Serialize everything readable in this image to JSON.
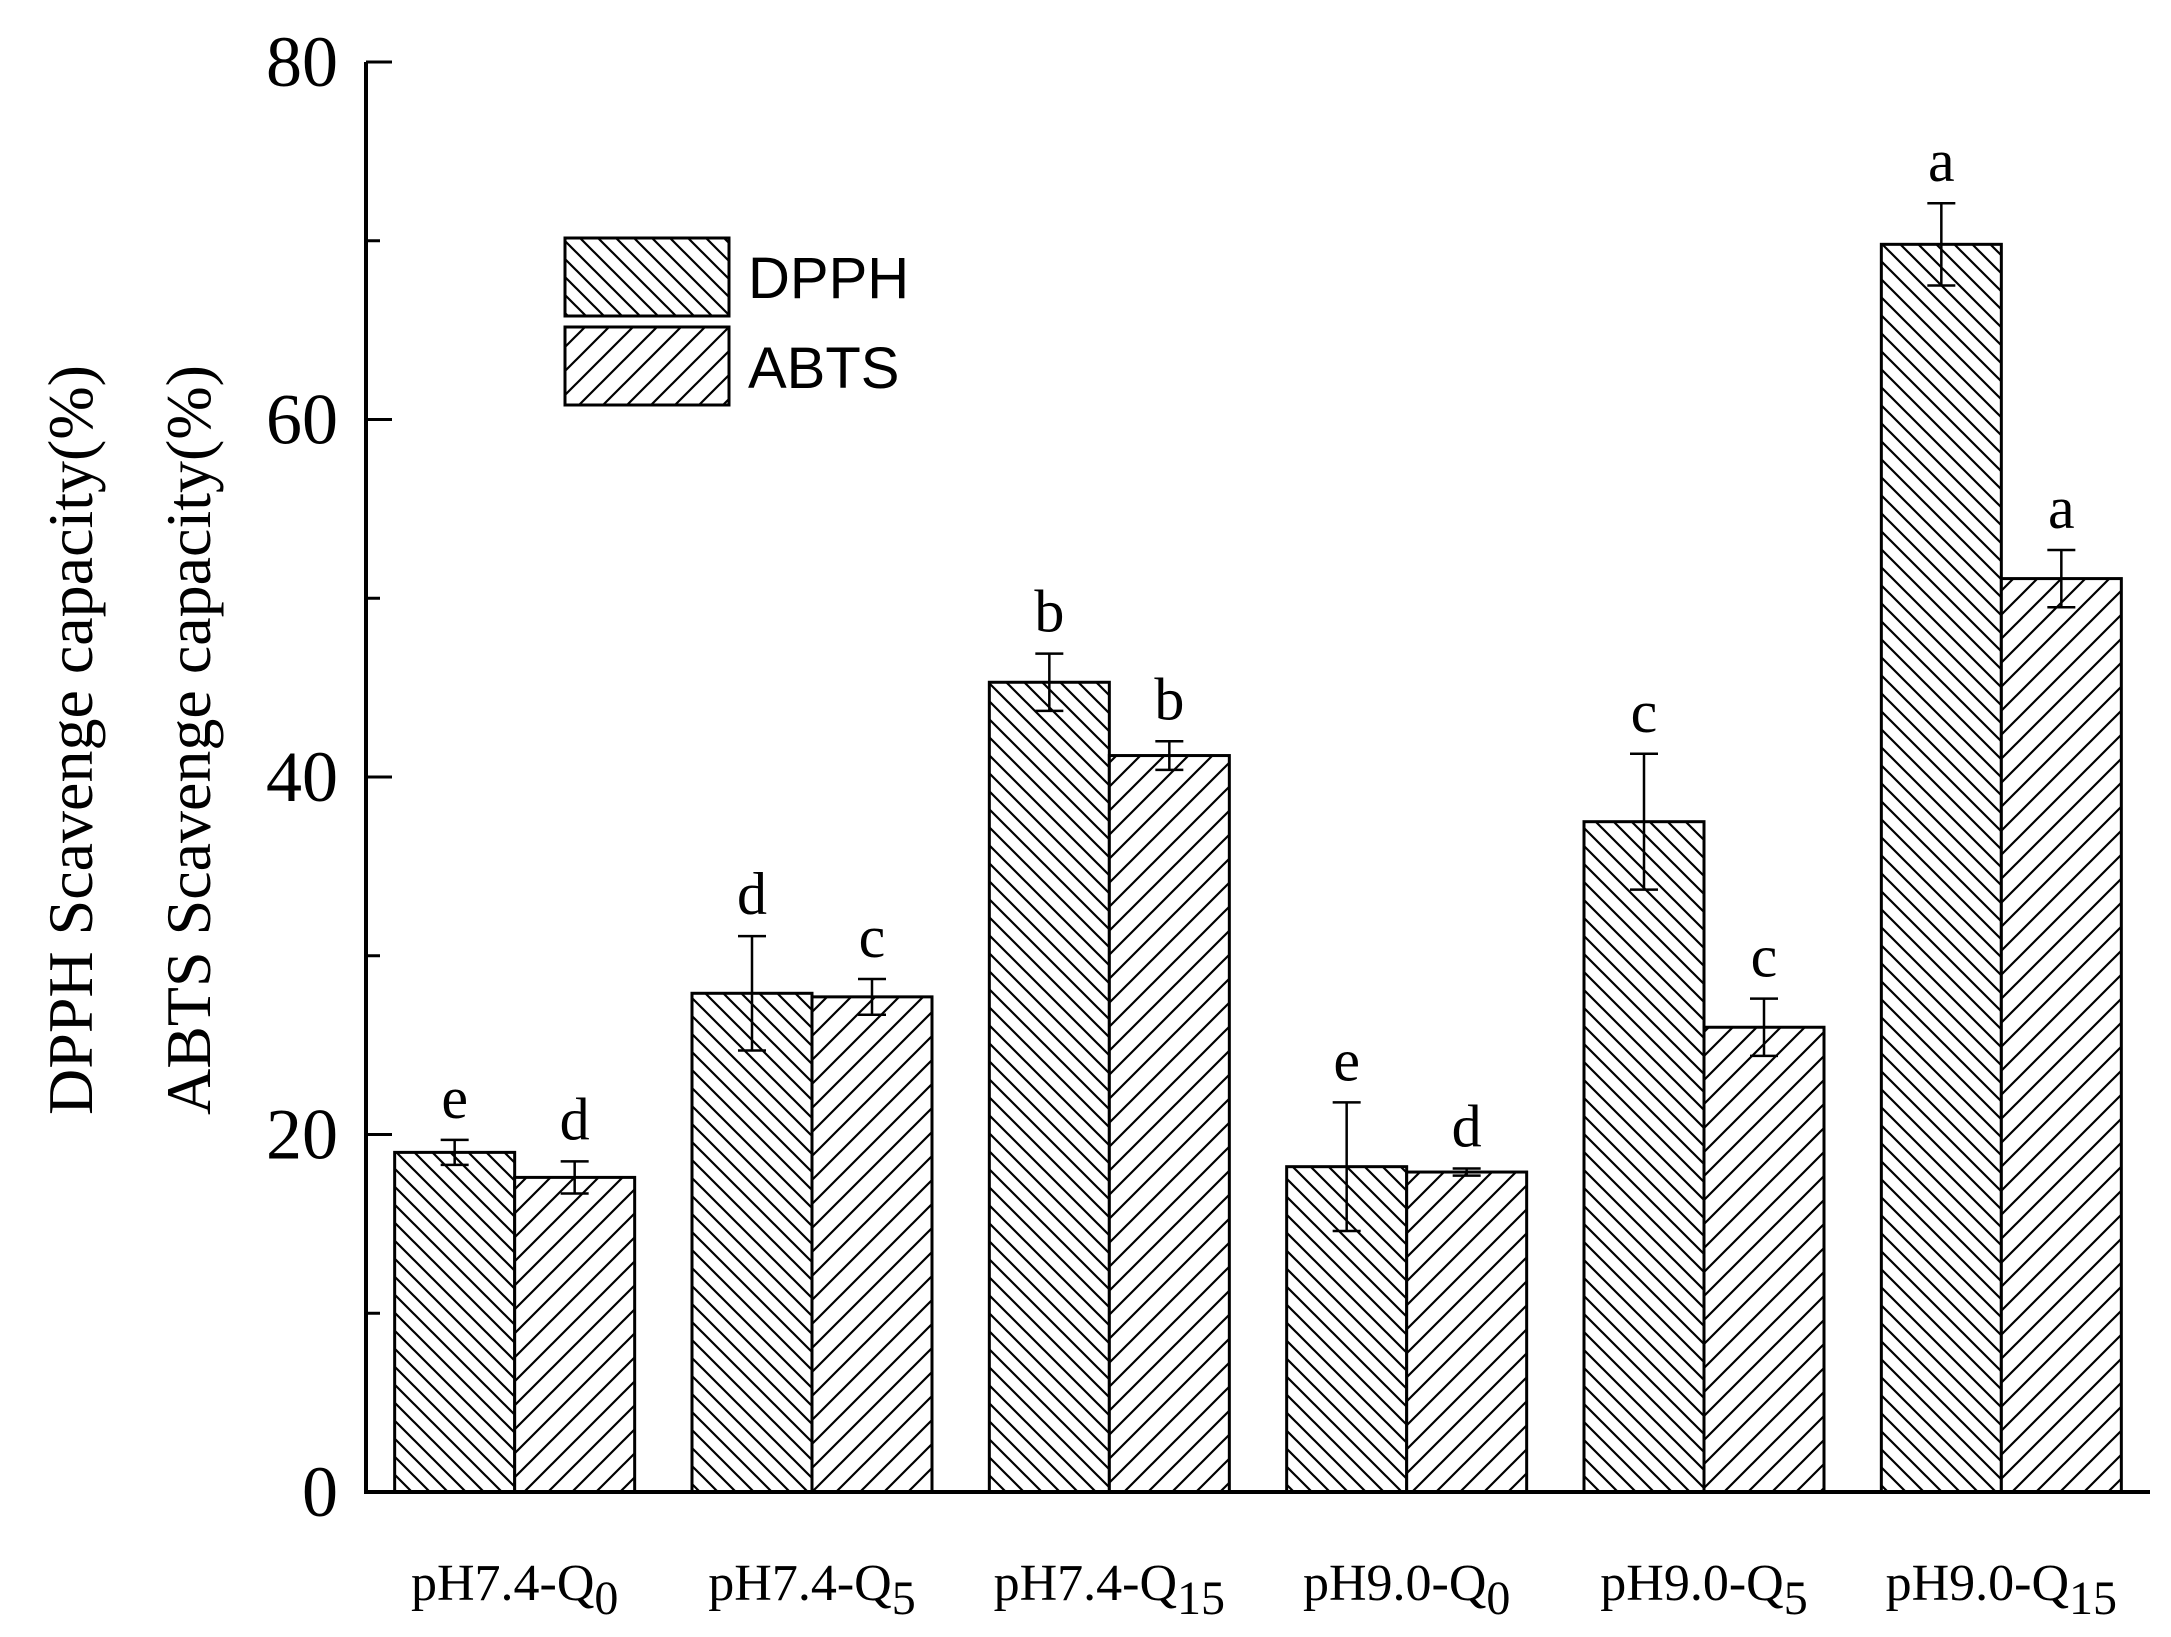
{
  "chart_data": {
    "type": "bar",
    "ylabel_lines": [
      "DPPH Scavenge capacity(%)",
      "ABTS Scavenge capacity(%)"
    ],
    "ylim": [
      0,
      80
    ],
    "yticks": [
      "0",
      "20",
      "40",
      "60",
      "80"
    ],
    "categories": [
      {
        "base": "pH7.4-Q",
        "sub": "0"
      },
      {
        "base": "pH7.4-Q",
        "sub": "5"
      },
      {
        "base": "pH7.4-Q",
        "sub": "15"
      },
      {
        "base": "pH9.0-Q",
        "sub": "0"
      },
      {
        "base": "pH9.0-Q",
        "sub": "5"
      },
      {
        "base": "pH9.0-Q",
        "sub": "15"
      }
    ],
    "series": [
      {
        "name": "DPPH",
        "pattern": "backslash-hatch",
        "values": [
          19.0,
          27.9,
          45.3,
          18.2,
          37.5,
          69.8
        ],
        "errors": [
          0.7,
          3.2,
          1.6,
          3.6,
          3.8,
          2.3
        ],
        "letters": [
          "e",
          "d",
          "b",
          "e",
          "c",
          "a"
        ]
      },
      {
        "name": "ABTS",
        "pattern": "slash-hatch",
        "values": [
          17.6,
          27.7,
          41.2,
          17.9,
          26.0,
          51.1
        ],
        "errors": [
          0.9,
          1.0,
          0.8,
          0.2,
          1.6,
          1.6
        ],
        "letters": [
          "d",
          "c",
          "b",
          "d",
          "c",
          "a"
        ]
      }
    ],
    "legend_position": "top-left",
    "grid": false
  }
}
